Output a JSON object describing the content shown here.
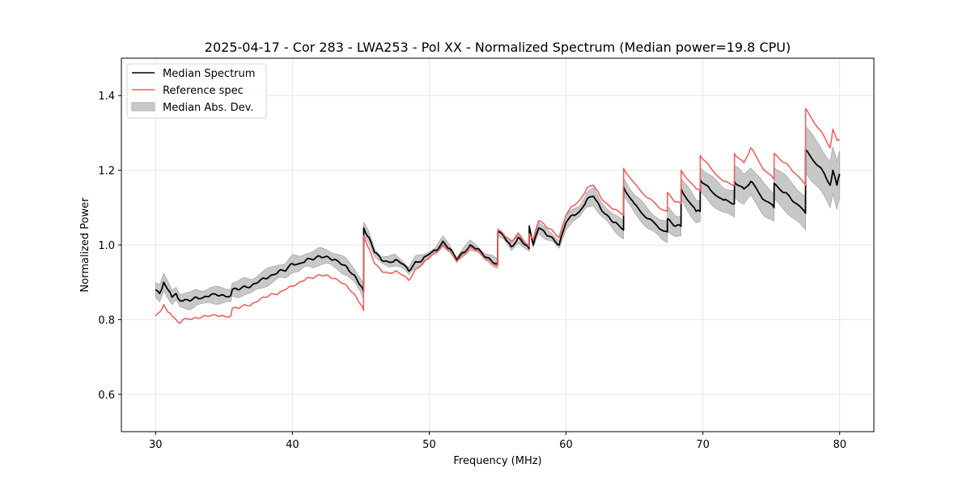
{
  "chart_data": {
    "type": "line",
    "title": "2025-04-17 - Cor 283 - LWA253 - Pol XX - Normalized Spectrum (Median power=19.8 CPU)",
    "xlabel": "Frequency (MHz)",
    "ylabel": "Normalized Power",
    "xlim": [
      27.5,
      82.5
    ],
    "ylim": [
      0.5,
      1.5
    ],
    "xticks": [
      30,
      40,
      50,
      60,
      70,
      80
    ],
    "xtick_labels": [
      "30",
      "40",
      "50",
      "60",
      "70",
      "80"
    ],
    "yticks": [
      0.6,
      0.8,
      1.0,
      1.2,
      1.4
    ],
    "ytick_labels": [
      "0.6",
      "0.8",
      "1.0",
      "1.2",
      "1.4"
    ],
    "grid": true,
    "legend_position": "top-left",
    "legend": [
      {
        "label": "Median Spectrum",
        "kind": "line",
        "color": "#000000"
      },
      {
        "label": "Reference spec",
        "kind": "line",
        "color": "#f06060"
      },
      {
        "label": "Median Abs. Dev.",
        "kind": "band",
        "color": "#c8c8c8"
      }
    ],
    "x": [
      30.0,
      30.3,
      30.6,
      30.9,
      31.2,
      31.5,
      31.8,
      32.0,
      32.5,
      33.0,
      33.5,
      34.0,
      34.5,
      35.0,
      35.5,
      35.6,
      36.0,
      36.5,
      37.0,
      37.5,
      38.0,
      38.5,
      39.0,
      39.5,
      40.0,
      40.5,
      41.0,
      41.5,
      42.0,
      42.5,
      43.0,
      43.5,
      44.0,
      44.5,
      45.0,
      45.2,
      45.21,
      45.6,
      46.0,
      46.5,
      47.0,
      47.5,
      48.0,
      48.5,
      49.0,
      49.5,
      50.0,
      50.5,
      51.0,
      51.5,
      52.0,
      52.5,
      53.0,
      53.5,
      54.0,
      54.5,
      55.0,
      55.01,
      55.5,
      56.0,
      56.5,
      57.0,
      57.3,
      57.31,
      57.6,
      58.0,
      58.5,
      59.0,
      59.5,
      60.0,
      60.5,
      61.0,
      61.5,
      62.0,
      62.5,
      63.0,
      63.5,
      64.2,
      64.21,
      65.0,
      66.0,
      67.0,
      67.4,
      67.41,
      68.0,
      68.4,
      68.41,
      69.5,
      69.8,
      69.81,
      70.5,
      71.5,
      72.3,
      72.31,
      73.0,
      73.5,
      74.5,
      75.2,
      75.21,
      76.0,
      76.5,
      77.5,
      77.51,
      78.5,
      79.0,
      79.3,
      79.5,
      79.8,
      80.0
    ],
    "series": [
      {
        "name": "Median Spectrum",
        "color": "#000000",
        "values": [
          0.88,
          0.87,
          0.9,
          0.88,
          0.86,
          0.87,
          0.85,
          0.85,
          0.85,
          0.86,
          0.86,
          0.865,
          0.865,
          0.865,
          0.865,
          0.88,
          0.88,
          0.89,
          0.89,
          0.9,
          0.91,
          0.92,
          0.93,
          0.93,
          0.95,
          0.95,
          0.96,
          0.96,
          0.97,
          0.97,
          0.96,
          0.95,
          0.94,
          0.92,
          0.89,
          0.875,
          1.045,
          1.02,
          0.98,
          0.96,
          0.955,
          0.96,
          0.95,
          0.93,
          0.955,
          0.96,
          0.975,
          0.985,
          1.01,
          0.99,
          0.96,
          0.98,
          1.0,
          0.99,
          0.97,
          0.96,
          0.95,
          1.035,
          1.02,
          0.995,
          1.02,
          1.0,
          0.99,
          1.05,
          1.0,
          1.045,
          1.03,
          1.02,
          1.0,
          1.06,
          1.08,
          1.09,
          1.12,
          1.13,
          1.1,
          1.08,
          1.06,
          1.04,
          1.155,
          1.11,
          1.07,
          1.04,
          1.035,
          1.07,
          1.05,
          1.05,
          1.15,
          1.09,
          1.09,
          1.175,
          1.15,
          1.12,
          1.11,
          1.17,
          1.15,
          1.17,
          1.12,
          1.1,
          1.165,
          1.14,
          1.12,
          1.085,
          1.255,
          1.21,
          1.18,
          1.16,
          1.2,
          1.16,
          1.19
        ]
      },
      {
        "name": "Reference spec",
        "color": "#f06060",
        "values": [
          0.81,
          0.82,
          0.84,
          0.82,
          0.81,
          0.8,
          0.79,
          0.8,
          0.8,
          0.805,
          0.81,
          0.81,
          0.81,
          0.81,
          0.81,
          0.83,
          0.83,
          0.84,
          0.84,
          0.85,
          0.86,
          0.87,
          0.87,
          0.88,
          0.89,
          0.9,
          0.91,
          0.91,
          0.92,
          0.92,
          0.91,
          0.9,
          0.89,
          0.87,
          0.84,
          0.825,
          1.025,
          0.99,
          0.95,
          0.93,
          0.925,
          0.93,
          0.92,
          0.905,
          0.935,
          0.95,
          0.965,
          0.98,
          1.0,
          0.985,
          0.955,
          0.975,
          0.995,
          0.985,
          0.965,
          0.955,
          0.945,
          1.04,
          1.025,
          1.01,
          1.03,
          1.005,
          0.995,
          1.03,
          1.015,
          1.065,
          1.05,
          1.04,
          1.02,
          1.08,
          1.105,
          1.12,
          1.15,
          1.16,
          1.13,
          1.11,
          1.095,
          1.08,
          1.205,
          1.165,
          1.125,
          1.095,
          1.09,
          1.14,
          1.115,
          1.11,
          1.2,
          1.15,
          1.145,
          1.24,
          1.21,
          1.17,
          1.16,
          1.245,
          1.22,
          1.26,
          1.2,
          1.175,
          1.245,
          1.22,
          1.2,
          1.16,
          1.365,
          1.31,
          1.28,
          1.26,
          1.31,
          1.28,
          1.28
        ]
      },
      {
        "name": "Median Abs. Dev.",
        "color": "#c8c8c8",
        "kind": "band",
        "halfwidth": [
          0.02,
          0.02,
          0.02,
          0.02,
          0.02,
          0.02,
          0.02,
          0.02,
          0.02,
          0.02,
          0.02,
          0.02,
          0.02,
          0.02,
          0.02,
          0.02,
          0.02,
          0.02,
          0.02,
          0.02,
          0.02,
          0.02,
          0.02,
          0.02,
          0.02,
          0.02,
          0.02,
          0.02,
          0.02,
          0.02,
          0.02,
          0.02,
          0.02,
          0.02,
          0.02,
          0.02,
          0.012,
          0.012,
          0.012,
          0.012,
          0.012,
          0.012,
          0.012,
          0.012,
          0.012,
          0.012,
          0.01,
          0.01,
          0.01,
          0.01,
          0.01,
          0.01,
          0.01,
          0.01,
          0.01,
          0.01,
          0.01,
          0.01,
          0.01,
          0.01,
          0.01,
          0.01,
          0.01,
          0.01,
          0.01,
          0.012,
          0.012,
          0.012,
          0.012,
          0.015,
          0.015,
          0.018,
          0.02,
          0.02,
          0.02,
          0.02,
          0.02,
          0.022,
          0.025,
          0.025,
          0.025,
          0.025,
          0.025,
          0.03,
          0.03,
          0.03,
          0.03,
          0.03,
          0.03,
          0.035,
          0.035,
          0.035,
          0.035,
          0.04,
          0.04,
          0.04,
          0.04,
          0.04,
          0.045,
          0.045,
          0.045,
          0.045,
          0.06,
          0.06,
          0.06,
          0.06,
          0.06,
          0.06,
          0.06
        ]
      }
    ]
  }
}
